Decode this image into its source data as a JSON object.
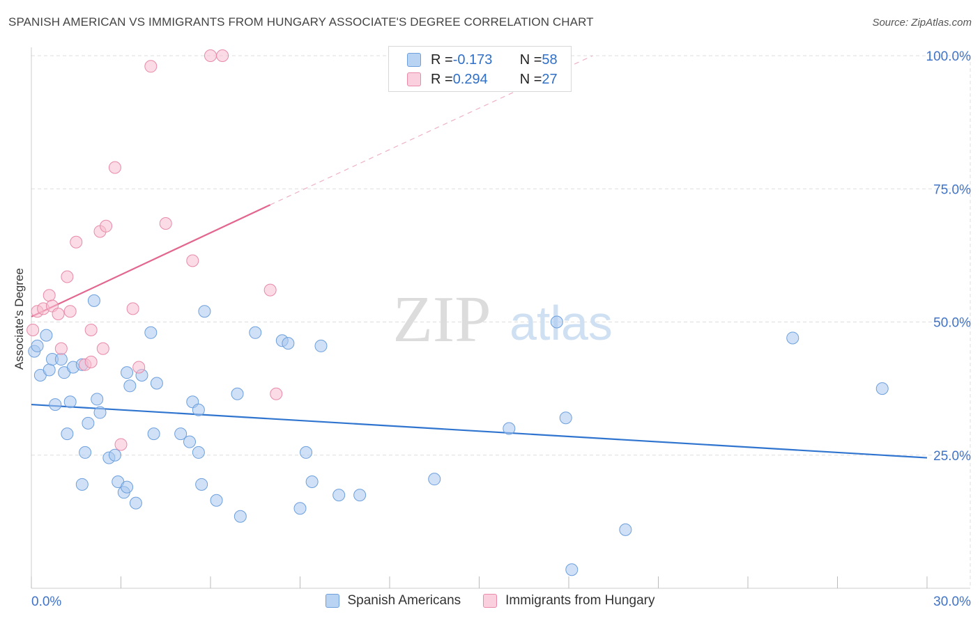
{
  "title": "SPANISH AMERICAN VS IMMIGRANTS FROM HUNGARY ASSOCIATE'S DEGREE CORRELATION CHART",
  "source": "Source: ZipAtlas.com",
  "watermark": {
    "zip": "ZIP",
    "atlas": "atlas"
  },
  "legend": {
    "row1": {
      "r_label": "R = ",
      "r_value": "-0.173",
      "n_label": "N = ",
      "n_value": "58"
    },
    "row2": {
      "r_label": "R = ",
      "r_value": "0.294",
      "n_label": "N = ",
      "n_value": "27"
    }
  },
  "colors": {
    "blue_fill": "#aac9f0",
    "blue_stroke": "#6c9fdc",
    "blue_line": "#2f74cf",
    "pink_fill": "#f7bdd0",
    "pink_stroke": "#e88aa8",
    "pink_line": "#e2668e",
    "grid": "#dddddd",
    "tick_label": "#3f73c8"
  },
  "chart_data": {
    "type": "scatter",
    "title": "SPANISH AMERICAN VS IMMIGRANTS FROM HUNGARY ASSOCIATE'S DEGREE CORRELATION CHART",
    "xlabel": "",
    "ylabel": "Associate's Degree",
    "xlim": [
      0,
      30
    ],
    "ylim": [
      0,
      100
    ],
    "x_tick_labels": [
      "0.0%",
      "30.0%"
    ],
    "y_tick_labels": [
      "25.0%",
      "50.0%",
      "75.0%",
      "100.0%"
    ],
    "y_tick_values": [
      25,
      50,
      75,
      100
    ],
    "series": [
      {
        "name": "Spanish Americans",
        "color": "#aac9f0",
        "points": [
          [
            0.1,
            44.5
          ],
          [
            0.2,
            45.5
          ],
          [
            0.5,
            47.5
          ],
          [
            0.3,
            40
          ],
          [
            0.6,
            41
          ],
          [
            0.7,
            43
          ],
          [
            1.0,
            43
          ],
          [
            1.1,
            40.5
          ],
          [
            1.4,
            41.5
          ],
          [
            1.7,
            42
          ],
          [
            2.1,
            54
          ],
          [
            0.8,
            34.5
          ],
          [
            1.3,
            35
          ],
          [
            2.2,
            35.5
          ],
          [
            2.3,
            33
          ],
          [
            1.2,
            29
          ],
          [
            1.9,
            31
          ],
          [
            1.8,
            25.5
          ],
          [
            2.6,
            24.5
          ],
          [
            2.8,
            25
          ],
          [
            1.7,
            19.5
          ],
          [
            2.9,
            20
          ],
          [
            3.1,
            18
          ],
          [
            3.2,
            19
          ],
          [
            3.5,
            16
          ],
          [
            3.2,
            40.5
          ],
          [
            3.3,
            38
          ],
          [
            3.7,
            40
          ],
          [
            4.0,
            48
          ],
          [
            4.1,
            29
          ],
          [
            4.2,
            38.5
          ],
          [
            5.0,
            29
          ],
          [
            5.3,
            27.5
          ],
          [
            5.4,
            35
          ],
          [
            5.6,
            33.5
          ],
          [
            5.6,
            25.5
          ],
          [
            5.7,
            19.5
          ],
          [
            5.8,
            52
          ],
          [
            6.2,
            16.5
          ],
          [
            6.9,
            36.5
          ],
          [
            7.0,
            13.5
          ],
          [
            7.5,
            48
          ],
          [
            8.4,
            46.5
          ],
          [
            8.6,
            46
          ],
          [
            9.0,
            15
          ],
          [
            9.2,
            25.5
          ],
          [
            9.4,
            20
          ],
          [
            9.7,
            45.5
          ],
          [
            10.3,
            17.5
          ],
          [
            11.0,
            17.5
          ],
          [
            13.5,
            20.5
          ],
          [
            16.0,
            30
          ],
          [
            17.6,
            50
          ],
          [
            17.9,
            32
          ],
          [
            18.1,
            3.5
          ],
          [
            19.9,
            11
          ],
          [
            25.5,
            47
          ],
          [
            28.5,
            37.5
          ]
        ],
        "trend": {
          "x": [
            0,
            30
          ],
          "y": [
            34.5,
            24.5
          ]
        }
      },
      {
        "name": "Immigrants from Hungary",
        "color": "#f7bdd0",
        "points": [
          [
            0.05,
            48.5
          ],
          [
            0.2,
            52
          ],
          [
            0.4,
            52.5
          ],
          [
            0.6,
            55
          ],
          [
            0.7,
            53
          ],
          [
            0.9,
            51.5
          ],
          [
            1.0,
            45
          ],
          [
            1.2,
            58.5
          ],
          [
            1.3,
            52
          ],
          [
            1.5,
            65
          ],
          [
            1.8,
            42
          ],
          [
            2.0,
            42.5
          ],
          [
            2.0,
            48.5
          ],
          [
            2.3,
            67
          ],
          [
            2.4,
            45
          ],
          [
            2.5,
            68
          ],
          [
            2.8,
            79
          ],
          [
            3.0,
            27
          ],
          [
            3.4,
            52.5
          ],
          [
            3.6,
            41.5
          ],
          [
            4.0,
            98
          ],
          [
            4.5,
            68.5
          ],
          [
            5.4,
            61.5
          ],
          [
            6.0,
            100
          ],
          [
            6.4,
            100
          ],
          [
            8.0,
            56
          ],
          [
            8.2,
            36.5
          ]
        ],
        "trend": {
          "x": [
            0,
            8.0
          ],
          "y": [
            51,
            72
          ]
        },
        "trend_extension": {
          "x": [
            8.0,
            18.8
          ],
          "y": [
            72,
            100
          ]
        }
      }
    ],
    "legend": [
      "Spanish Americans",
      "Immigrants from Hungary"
    ]
  }
}
